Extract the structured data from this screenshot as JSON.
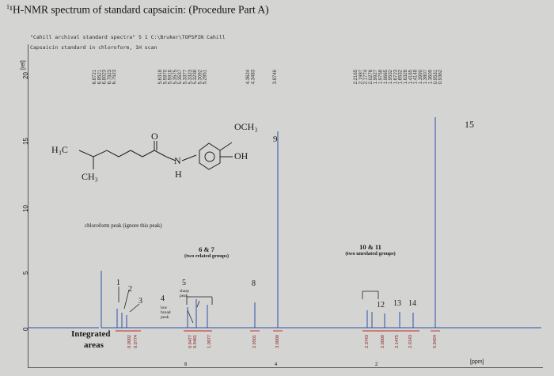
{
  "title": "¹H-NMR spectrum of standard capsaicin: (Procedure Part A)",
  "header": {
    "line1": "\"Cahill archival standard spectra\"  5  1  C:\\Bruker\\TOPSPIN  Cahill",
    "line2": "Capsaicin standard in chloroform, 1H scan"
  },
  "axes": {
    "y_unit": "[rel]",
    "y_ticks": [
      "20",
      "15",
      "10",
      "5",
      "0"
    ],
    "x_unit": "[ppm]",
    "x_ticks": [
      "6",
      "4",
      "2"
    ]
  },
  "peak_label_groups": [
    "6.8721\n6.8521\n6.8023\n6.7823\n6.7523",
    "5.6318\n5.5970\n5.5916\n5.3575\n5.3537\n5.3377\n5.3323\n5.3238\n5.3092\n5.2851",
    "4.3624\n4.3483",
    "3.8746",
    "2.2165\n2.1987\n2.1774\n2.0276\n1.9927\n1.9758\n1.9665\n1.9532\n1.6723\n1.6532\n1.6328\n1.4165\n1.4148\n1.3990\n1.3807\n1.3609\n0.9531\n0.9362"
  ],
  "structure": {
    "h3c": "H₃C",
    "ch3": "CH₃",
    "o": "O",
    "n": "N",
    "h": "H",
    "och3": "OCH₃",
    "oh": "OH"
  },
  "annotations": {
    "chloroform": "chloroform peak (ignore this peak)",
    "group67": "6 & 7",
    "group67_sub": "(two related groups)",
    "group1011": "10 & 11",
    "group1011_sub": "(two unrelated groups)",
    "p1": "1",
    "p2": "2",
    "p3": "3",
    "p4": "4",
    "p4_sub": "low broad peak",
    "p5": "5",
    "p5_sub": "sharp peak",
    "p8": "8",
    "p9": "9",
    "p12": "12",
    "p13": "13",
    "p14": "14",
    "p15": "15",
    "integrated": "Integrated",
    "areas": "areas"
  },
  "integrals": [
    "0.0002",
    "0.0774",
    "0.9477",
    "0.9461",
    "1.0977",
    "2.9501",
    "3.0000",
    "2.3743",
    "2.0000",
    "2.1475",
    "2.0143",
    "5.8424"
  ]
}
